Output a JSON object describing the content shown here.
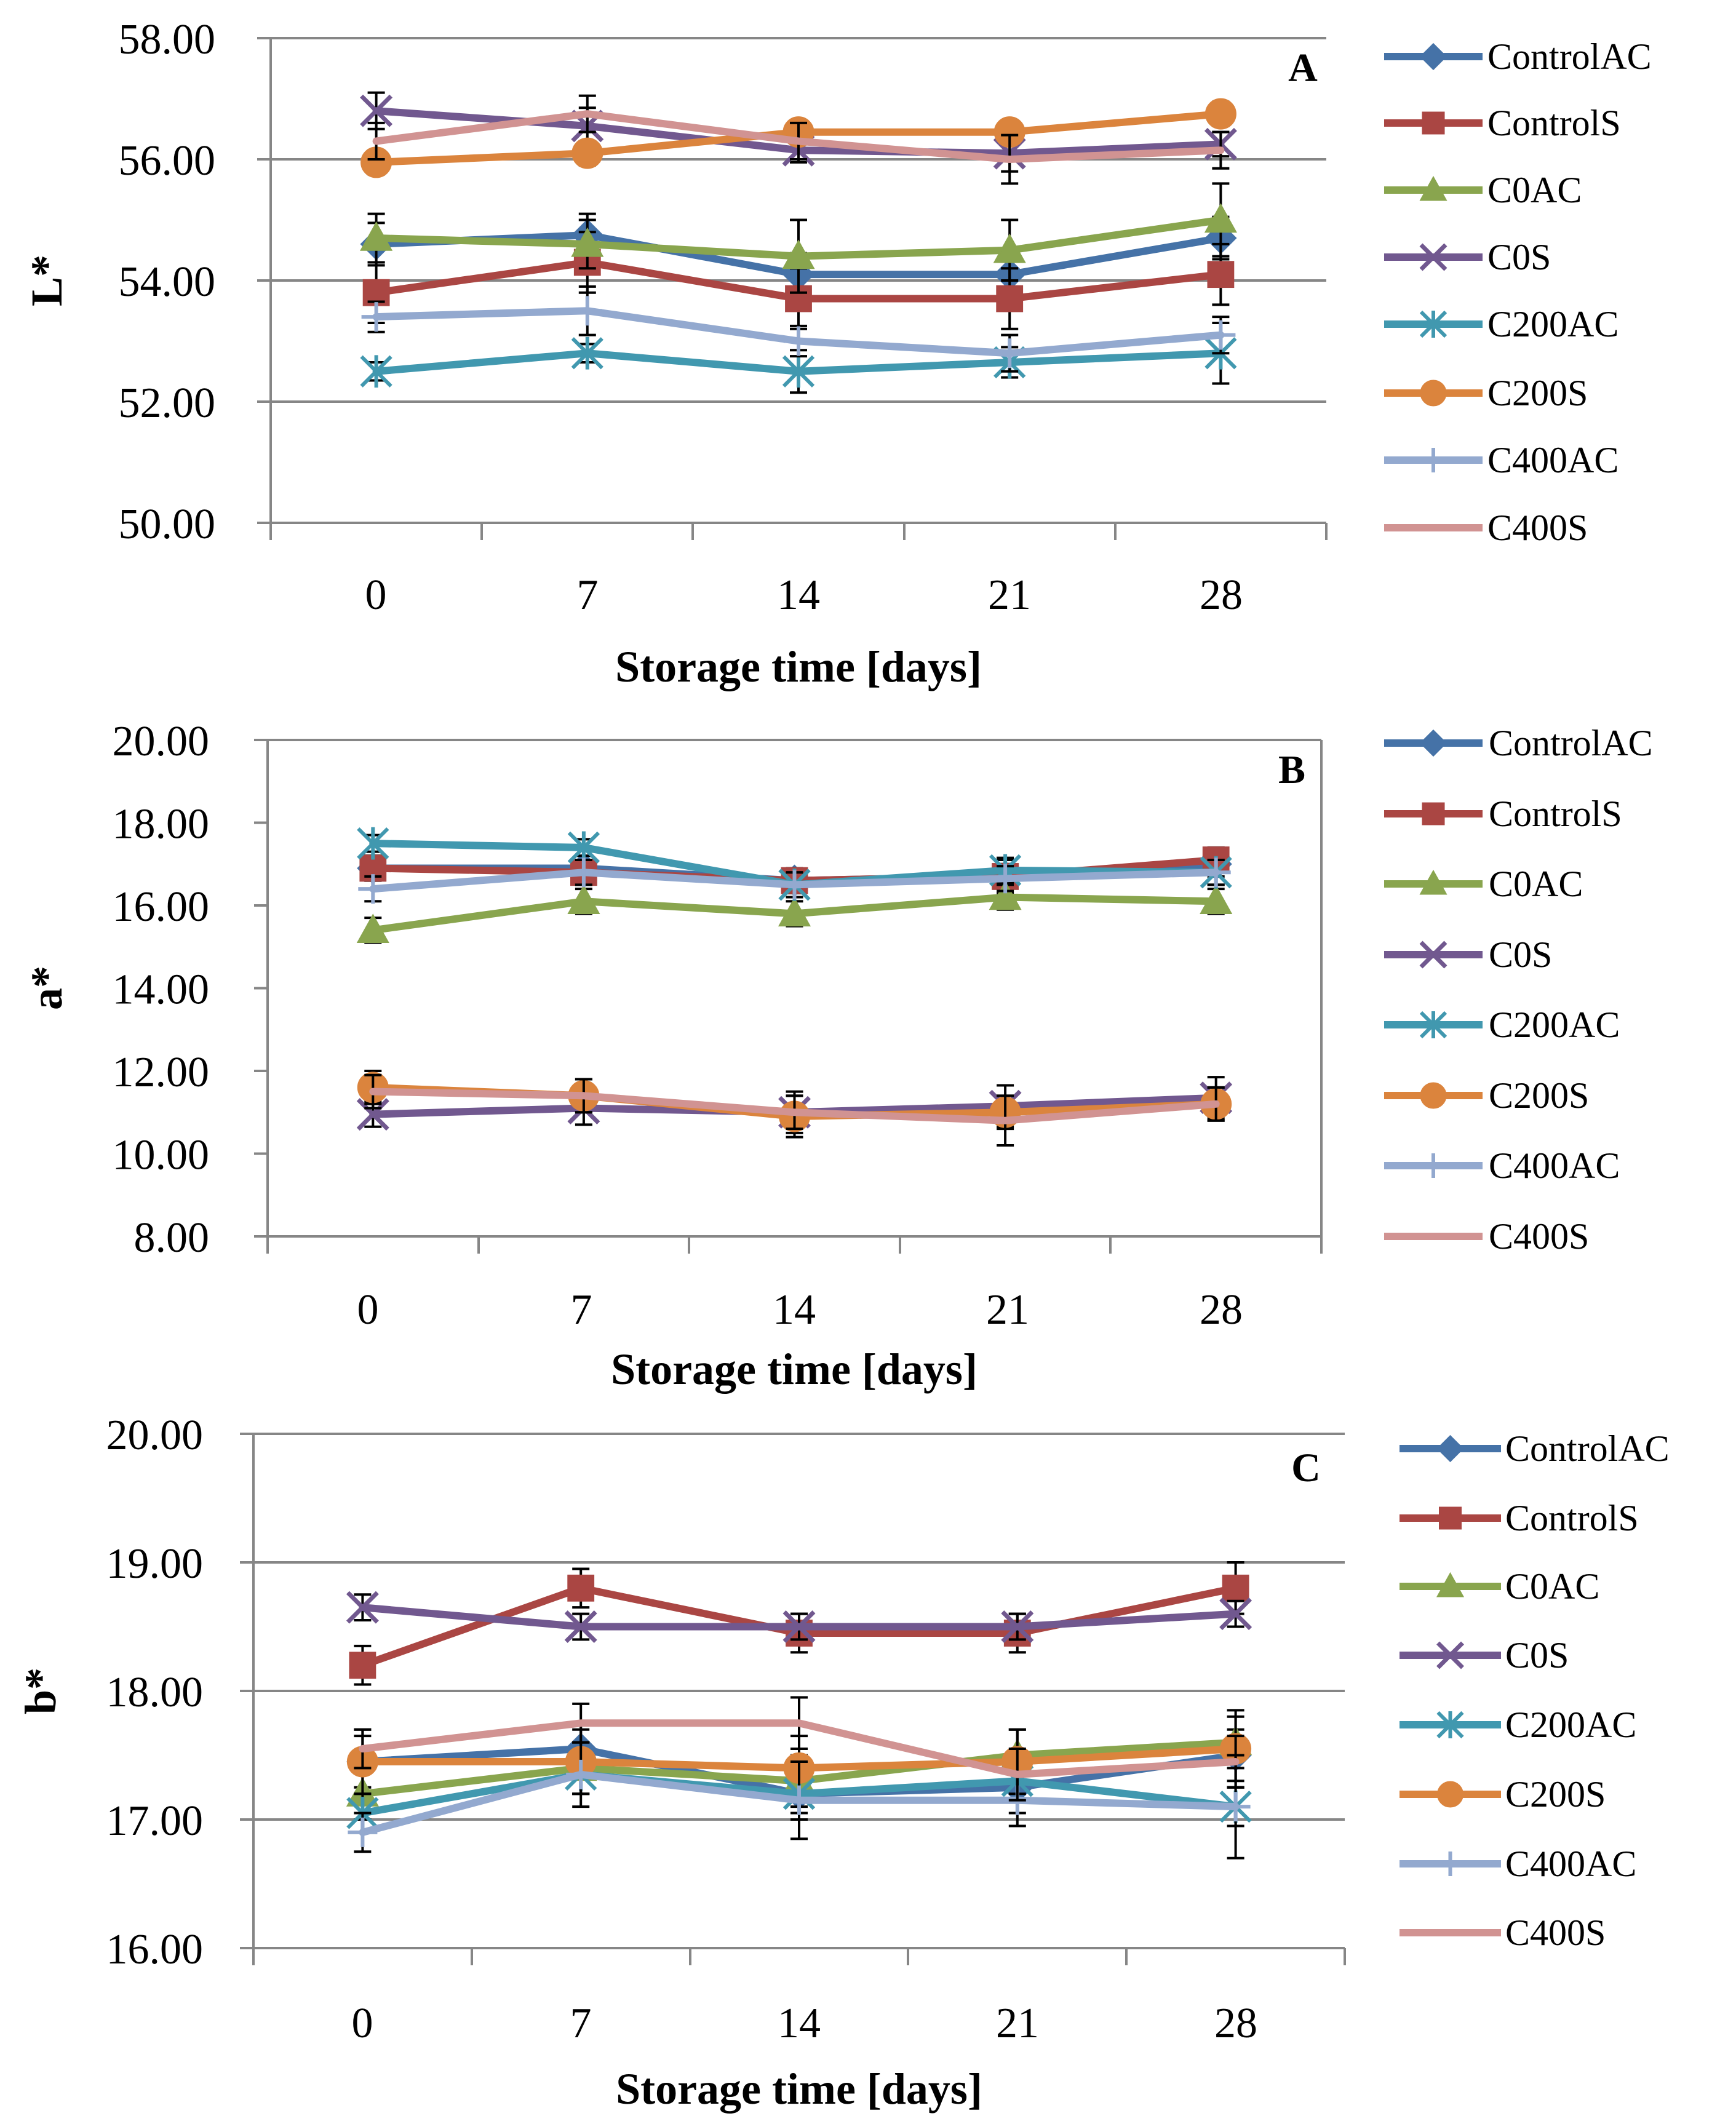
{
  "figure": {
    "xlabel": "Storage time [days]"
  },
  "colors": {
    "ControlAC": "#4572A7",
    "ControlS": "#AA4643",
    "C0AC": "#89A54E",
    "C0S": "#71588F",
    "C200AC": "#4198AF",
    "C200S": "#DB843D",
    "C400AC": "#93A9CF",
    "C400S": "#D19392"
  },
  "chart_data": [
    {
      "type": "line",
      "panel": "A",
      "ylabel": "L*",
      "xlabel": "Storage time [days]",
      "categories": [
        "0",
        "7",
        "14",
        "21",
        "28"
      ],
      "ylim": [
        50,
        58
      ],
      "yticks": [
        "50.00",
        "52.00",
        "54.00",
        "56.00",
        "58.00"
      ],
      "grid": true,
      "legend": "right",
      "series": [
        {
          "name": "ControlAC",
          "marker": "diamond",
          "values": [
            54.6,
            54.75,
            54.1,
            54.1,
            54.7
          ],
          "errors": [
            0.35,
            0.35,
            0.35,
            0.35,
            0.35
          ]
        },
        {
          "name": "ControlS",
          "marker": "square",
          "values": [
            53.8,
            54.3,
            53.7,
            53.7,
            54.1
          ],
          "errors": [
            0.5,
            0.5,
            0.5,
            0.5,
            0.5
          ]
        },
        {
          "name": "C0AC",
          "marker": "triangle",
          "values": [
            54.7,
            54.6,
            54.4,
            54.5,
            55.0
          ],
          "errors": [
            0.4,
            0.4,
            0.6,
            0.5,
            0.6
          ]
        },
        {
          "name": "C0S",
          "marker": "x",
          "values": [
            56.8,
            56.55,
            56.15,
            56.1,
            56.25
          ],
          "errors": [
            0.3,
            0.3,
            0.2,
            0.3,
            0.2
          ]
        },
        {
          "name": "C200AC",
          "marker": "asterisk",
          "values": [
            52.5,
            52.8,
            52.5,
            52.65,
            52.8
          ],
          "errors": [
            0.15,
            0.15,
            0.35,
            0.25,
            0.5
          ]
        },
        {
          "name": "C200S",
          "marker": "circle",
          "values": [
            55.95,
            56.1,
            56.45,
            56.45,
            56.75
          ],
          "errors": [
            0.2,
            0.2,
            0.15,
            0.2,
            0.2
          ]
        },
        {
          "name": "C400AC",
          "marker": "plus",
          "values": [
            53.4,
            53.5,
            53.0,
            52.8,
            53.1
          ],
          "errors": [
            0.25,
            0.4,
            0.25,
            0.3,
            0.3
          ]
        },
        {
          "name": "C400S",
          "marker": "none",
          "values": [
            56.3,
            56.75,
            56.3,
            56.0,
            56.15
          ],
          "errors": [
            0.3,
            0.3,
            0.3,
            0.4,
            0.3
          ]
        }
      ]
    },
    {
      "type": "line",
      "panel": "B",
      "ylabel": "a*",
      "xlabel": "Storage time [days]",
      "categories": [
        "0",
        "7",
        "14",
        "21",
        "28"
      ],
      "ylim": [
        8,
        20
      ],
      "yticks": [
        "8.00",
        "10.00",
        "12.00",
        "14.00",
        "16.00",
        "18.00",
        "20.00"
      ],
      "grid": false,
      "legend": "right",
      "series": [
        {
          "name": "ControlAC",
          "marker": "diamond",
          "values": [
            16.9,
            16.9,
            16.6,
            16.7,
            17.0
          ],
          "errors": [
            0.3,
            0.3,
            0.3,
            0.3,
            0.3
          ]
        },
        {
          "name": "ControlS",
          "marker": "square",
          "values": [
            16.9,
            16.8,
            16.6,
            16.7,
            17.1
          ],
          "errors": [
            0.3,
            0.3,
            0.3,
            0.4,
            0.3
          ]
        },
        {
          "name": "C0AC",
          "marker": "triangle",
          "values": [
            15.4,
            16.1,
            15.8,
            16.2,
            16.1
          ],
          "errors": [
            0.3,
            0.3,
            0.3,
            0.3,
            0.3
          ]
        },
        {
          "name": "C0S",
          "marker": "x",
          "values": [
            10.95,
            11.1,
            11.0,
            11.15,
            11.35
          ],
          "errors": [
            0.3,
            0.4,
            0.5,
            0.5,
            0.5
          ]
        },
        {
          "name": "C200AC",
          "marker": "asterisk",
          "values": [
            17.5,
            17.4,
            16.5,
            16.85,
            16.8
          ],
          "errors": [
            0.2,
            0.2,
            0.3,
            0.3,
            0.3
          ]
        },
        {
          "name": "C200S",
          "marker": "circle",
          "values": [
            11.6,
            11.4,
            10.9,
            11.0,
            11.2
          ],
          "errors": [
            0.4,
            0.4,
            0.5,
            0.4,
            0.4
          ]
        },
        {
          "name": "C400AC",
          "marker": "plus",
          "values": [
            16.4,
            16.8,
            16.5,
            16.65,
            16.8
          ],
          "errors": [
            0.3,
            0.3,
            0.3,
            0.3,
            0.3
          ]
        },
        {
          "name": "C400S",
          "marker": "none",
          "values": [
            11.5,
            11.4,
            11.0,
            10.8,
            11.2
          ],
          "errors": [
            0.4,
            0.4,
            0.4,
            0.6,
            0.4
          ]
        }
      ]
    },
    {
      "type": "line",
      "panel": "C",
      "ylabel": "b*",
      "xlabel": "Storage time [days]",
      "categories": [
        "0",
        "7",
        "14",
        "21",
        "28"
      ],
      "ylim": [
        16,
        20
      ],
      "yticks": [
        "16.00",
        "17.00",
        "18.00",
        "19.00",
        "20.00"
      ],
      "grid": true,
      "legend": "right",
      "series": [
        {
          "name": "ControlAC",
          "marker": "diamond",
          "values": [
            17.45,
            17.55,
            17.2,
            17.25,
            17.5
          ],
          "errors": [
            0.2,
            0.2,
            0.2,
            0.2,
            0.2
          ]
        },
        {
          "name": "ControlS",
          "marker": "square",
          "values": [
            18.2,
            18.8,
            18.45,
            18.45,
            18.8
          ],
          "errors": [
            0.15,
            0.15,
            0.15,
            0.15,
            0.2
          ]
        },
        {
          "name": "C0AC",
          "marker": "triangle",
          "values": [
            17.2,
            17.4,
            17.3,
            17.5,
            17.6
          ],
          "errors": [
            0.2,
            0.2,
            0.2,
            0.2,
            0.2
          ]
        },
        {
          "name": "C0S",
          "marker": "x",
          "values": [
            18.65,
            18.5,
            18.5,
            18.5,
            18.6
          ],
          "errors": [
            0.1,
            0.1,
            0.1,
            0.1,
            0.1
          ]
        },
        {
          "name": "C200AC",
          "marker": "asterisk",
          "values": [
            17.05,
            17.35,
            17.2,
            17.3,
            17.1
          ],
          "errors": [
            0.15,
            0.15,
            0.15,
            0.15,
            0.15
          ]
        },
        {
          "name": "C200S",
          "marker": "circle",
          "values": [
            17.45,
            17.45,
            17.4,
            17.45,
            17.55
          ],
          "errors": [
            0.25,
            0.25,
            0.25,
            0.25,
            0.3
          ]
        },
        {
          "name": "C400AC",
          "marker": "plus",
          "values": [
            16.9,
            17.35,
            17.15,
            17.15,
            17.1
          ],
          "errors": [
            0.15,
            0.25,
            0.3,
            0.2,
            0.4
          ]
        },
        {
          "name": "C400S",
          "marker": "none",
          "values": [
            17.55,
            17.75,
            17.75,
            17.35,
            17.45
          ],
          "errors": [
            0.15,
            0.15,
            0.2,
            0.2,
            0.2
          ]
        }
      ]
    }
  ]
}
